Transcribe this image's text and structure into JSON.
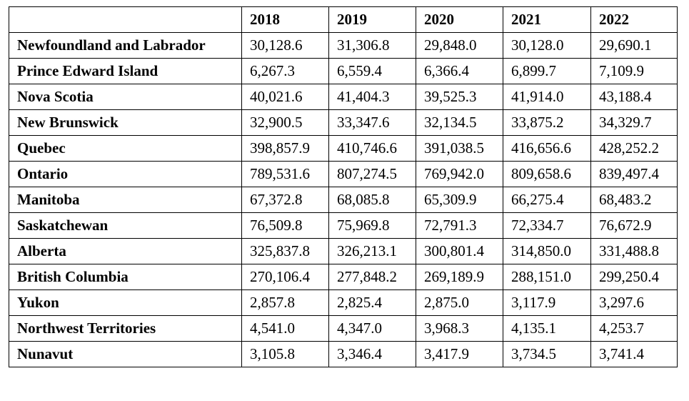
{
  "table": {
    "corner": "",
    "columns": [
      "2018",
      "2019",
      "2020",
      "2021",
      "2022"
    ],
    "rows": [
      {
        "label": "Newfoundland and Labrador",
        "values": [
          "30,128.6",
          "31,306.8",
          "29,848.0",
          "30,128.0",
          "29,690.1"
        ]
      },
      {
        "label": "Prince Edward Island",
        "values": [
          "6,267.3",
          "6,559.4",
          "6,366.4",
          "6,899.7",
          "7,109.9"
        ]
      },
      {
        "label": "Nova Scotia",
        "values": [
          "40,021.6",
          "41,404.3",
          "39,525.3",
          "41,914.0",
          "43,188.4"
        ]
      },
      {
        "label": "New Brunswick",
        "values": [
          "32,900.5",
          "33,347.6",
          "32,134.5",
          "33,875.2",
          "34,329.7"
        ]
      },
      {
        "label": "Quebec",
        "values": [
          "398,857.9",
          "410,746.6",
          "391,038.5",
          "416,656.6",
          "428,252.2"
        ]
      },
      {
        "label": "Ontario",
        "values": [
          "789,531.6",
          "807,274.5",
          "769,942.0",
          "809,658.6",
          "839,497.4"
        ]
      },
      {
        "label": "Manitoba",
        "values": [
          "67,372.8",
          "68,085.8",
          "65,309.9",
          "66,275.4",
          "68,483.2"
        ]
      },
      {
        "label": "Saskatchewan",
        "values": [
          "76,509.8",
          "75,969.8",
          "72,791.3",
          "72,334.7",
          "76,672.9"
        ]
      },
      {
        "label": "Alberta",
        "values": [
          "325,837.8",
          "326,213.1",
          "300,801.4",
          "314,850.0",
          "331,488.8"
        ]
      },
      {
        "label": "British Columbia",
        "values": [
          "270,106.4",
          "277,848.2",
          "269,189.9",
          "288,151.0",
          "299,250.4"
        ]
      },
      {
        "label": "Yukon",
        "values": [
          "2,857.8",
          "2,825.4",
          "2,875.0",
          "3,117.9",
          "3,297.6"
        ]
      },
      {
        "label": "Northwest Territories",
        "values": [
          "4,541.0",
          "4,347.0",
          "3,968.3",
          "4,135.1",
          "4,253.7"
        ]
      },
      {
        "label": "Nunavut",
        "values": [
          "3,105.8",
          "3,346.4",
          "3,417.9",
          "3,734.5",
          "3,741.4"
        ]
      }
    ]
  }
}
